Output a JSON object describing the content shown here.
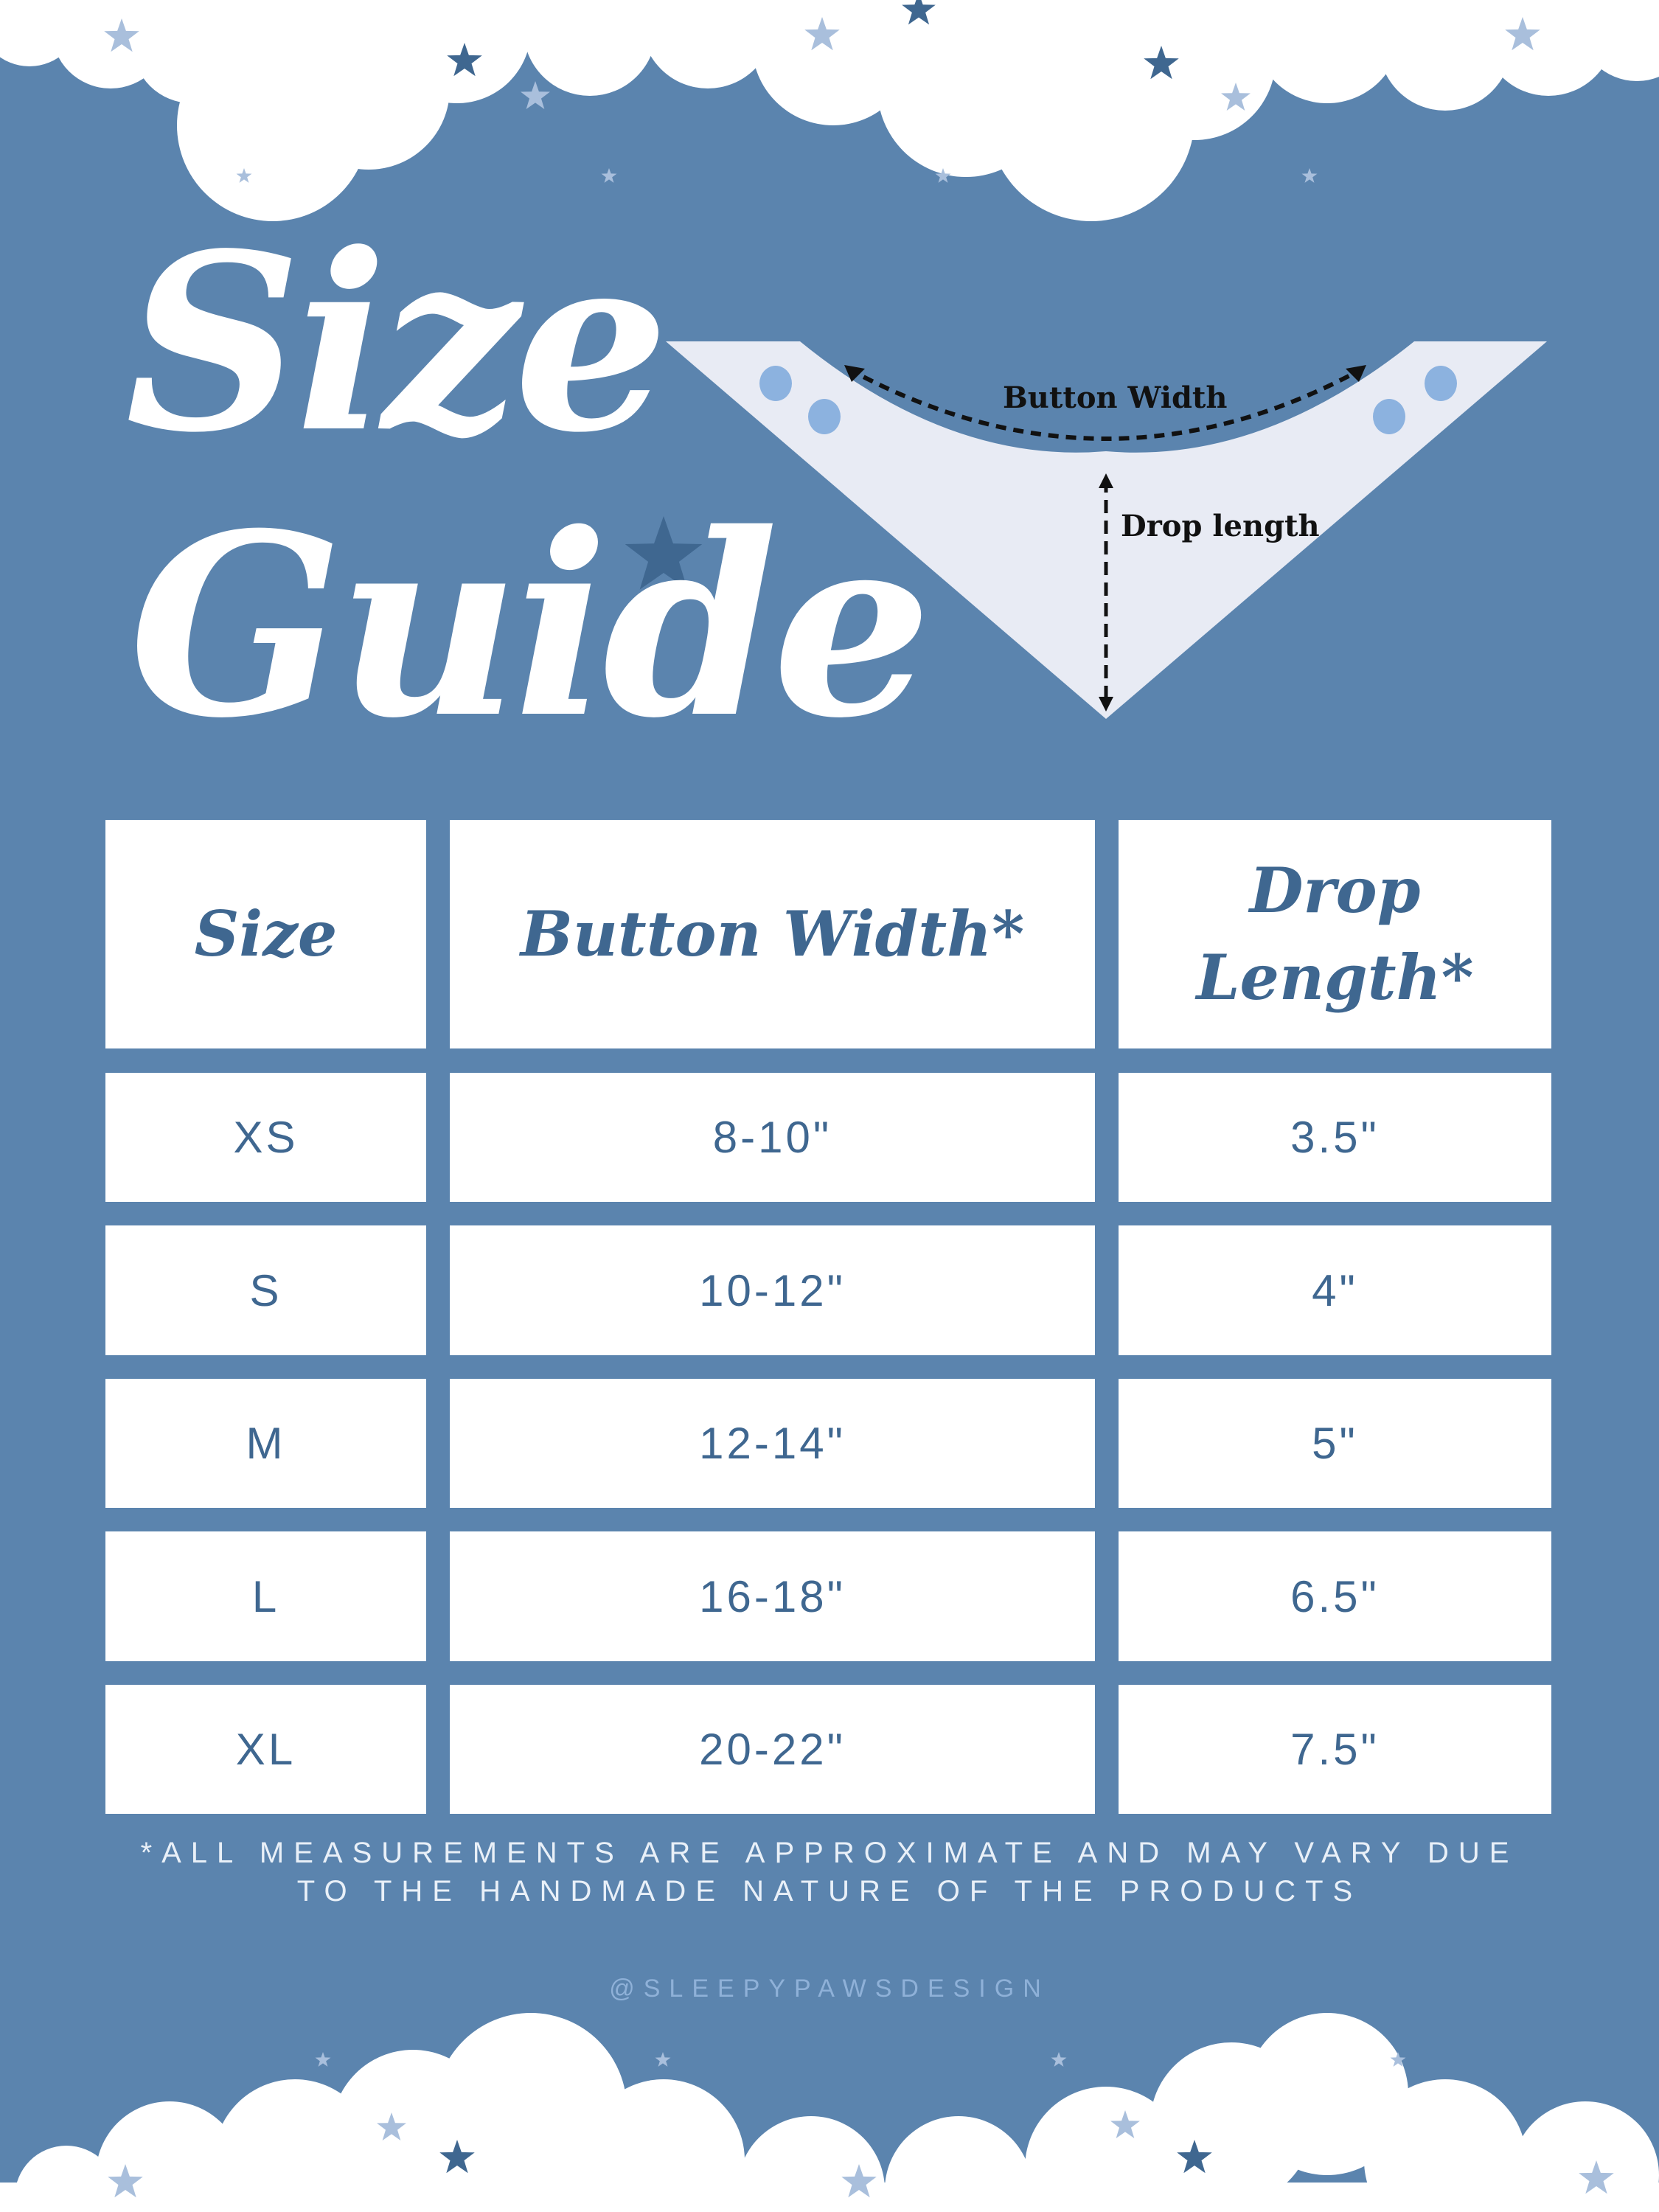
{
  "title": {
    "line1": "Size",
    "line2": "Guide"
  },
  "diagram": {
    "button_width_label": "Button Width",
    "drop_length_label": "Drop length"
  },
  "table": {
    "headers": [
      "Size",
      "Button Width*",
      "Drop Length*"
    ],
    "rows": [
      [
        "XS",
        "8-10\"",
        "3.5\""
      ],
      [
        "S",
        "10-12\"",
        "4\""
      ],
      [
        "M",
        "12-14\"",
        "5\""
      ],
      [
        "L",
        "16-18\"",
        "6.5\""
      ],
      [
        "XL",
        "20-22\"",
        "7.5\""
      ]
    ]
  },
  "footnote": {
    "line1": "*ALL MEASUREMENTS ARE APPROXIMATE AND MAY VARY DUE",
    "line2": "TO THE HANDMADE NATURE OF THE PRODUCTS"
  },
  "handle": "@SLEEPYPAWSDESIGN",
  "colors": {
    "background": "#5b84ae",
    "text_blue": "#3f6790",
    "bandana": "#e8ebf4",
    "button_dots": "#8cb2df"
  }
}
